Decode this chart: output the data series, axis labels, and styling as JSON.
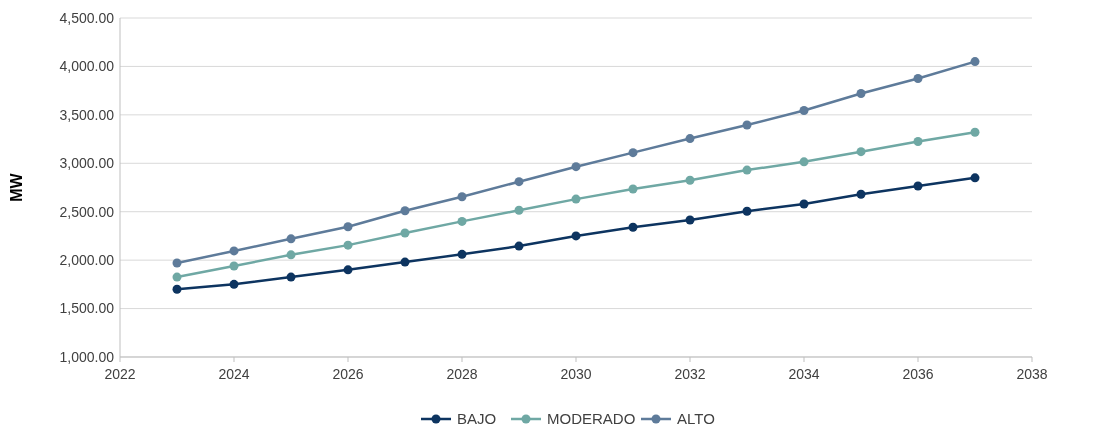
{
  "chart_data": {
    "type": "line",
    "ylabel": "MW",
    "x": [
      2023,
      2024,
      2025,
      2026,
      2027,
      2028,
      2029,
      2030,
      2031,
      2032,
      2033,
      2034,
      2035,
      2036,
      2037
    ],
    "series": [
      {
        "name": "BAJO",
        "color": "#0d3460",
        "values": [
          1700,
          1750,
          1825,
          1900,
          1980,
          2060,
          2145,
          2250,
          2340,
          2415,
          2505,
          2580,
          2680,
          2765,
          2850
        ]
      },
      {
        "name": "MODERADO",
        "color": "#6fa8a4",
        "values": [
          1825,
          1940,
          2055,
          2155,
          2280,
          2400,
          2515,
          2630,
          2735,
          2825,
          2930,
          3015,
          3120,
          3225,
          3320
        ]
      },
      {
        "name": "ALTO",
        "color": "#5e7b9a",
        "values": [
          1970,
          2095,
          2220,
          2345,
          2510,
          2655,
          2810,
          2965,
          3110,
          3255,
          3395,
          3545,
          3720,
          3875,
          4050
        ]
      }
    ],
    "xlim": [
      2022,
      2038
    ],
    "xticks": [
      2022,
      2024,
      2026,
      2028,
      2030,
      2032,
      2034,
      2036,
      2038
    ],
    "ylim": [
      1000,
      4500
    ],
    "yticks": [
      {
        "value": 1000,
        "label": "1,000.00"
      },
      {
        "value": 1500,
        "label": "1,500.00"
      },
      {
        "value": 2000,
        "label": "2,000.00"
      },
      {
        "value": 2500,
        "label": "2,500.00"
      },
      {
        "value": 3000,
        "label": "3,000.00"
      },
      {
        "value": 3500,
        "label": "3,500.00"
      },
      {
        "value": 4000,
        "label": "4,000.00"
      },
      {
        "value": 4500,
        "label": "4,500.00"
      }
    ],
    "grid": "y",
    "legend": "bottom",
    "marker": "circle",
    "line_style": "solid"
  }
}
